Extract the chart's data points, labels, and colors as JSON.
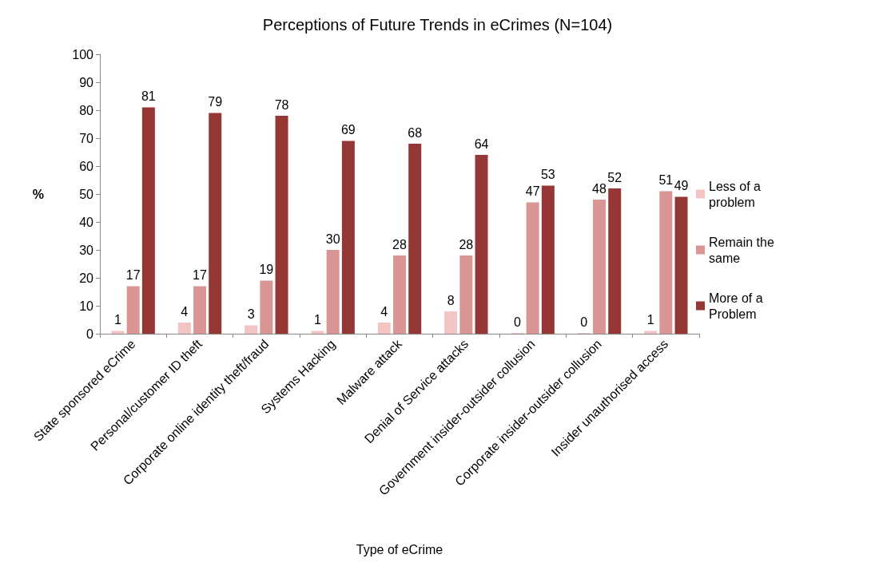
{
  "chart_data": {
    "type": "bar",
    "title": "Perceptions of Future Trends in eCrimes (N=104)",
    "xlabel": "Type of eCrime",
    "ylabel": "%",
    "categories": [
      "State sponsored eCrime",
      "Personal/customer ID theft",
      "Corporate online identity theft/fraud",
      "Systems Hacking",
      "Malware attack",
      "Denial of Service attacks",
      "Government insider-outsider collusion",
      "Corporate insider-outsider collusion",
      "Insider unauthorised access"
    ],
    "series": [
      {
        "name": "Less of a problem",
        "color": "#f2c4c4",
        "values": [
          1,
          4,
          3,
          1,
          4,
          8,
          0,
          0,
          1
        ]
      },
      {
        "name": "Remain the same",
        "color": "#d99694",
        "values": [
          17,
          17,
          19,
          30,
          28,
          28,
          47,
          48,
          51
        ]
      },
      {
        "name": "More of a Problem",
        "color": "#953735",
        "values": [
          81,
          79,
          78,
          69,
          68,
          64,
          53,
          52,
          49
        ]
      }
    ],
    "ylim": [
      0,
      100
    ],
    "yticks": [
      0,
      10,
      20,
      30,
      40,
      50,
      60,
      70,
      80,
      90,
      100
    ],
    "grid": false,
    "legend": "right",
    "data_labels": true
  }
}
